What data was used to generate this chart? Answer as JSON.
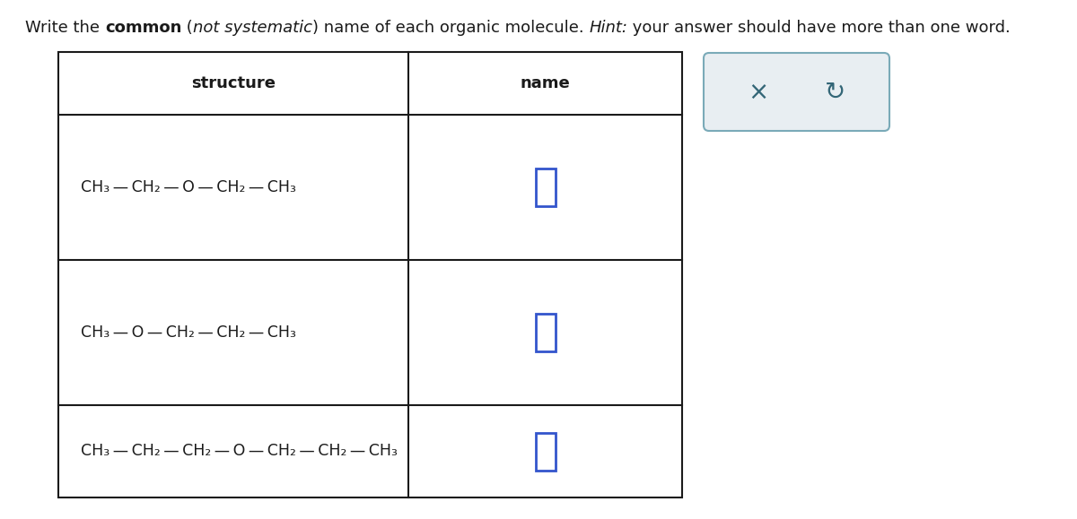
{
  "bg_color": "#ffffff",
  "table_line_color": "#1a1a1a",
  "text_color": "#1a1a1a",
  "input_box_color": "#3355cc",
  "button_bg": "#e8eef2",
  "button_border": "#7aaab8",
  "button_text_color": "#336677",
  "col1_header": "structure",
  "col2_header": "name",
  "structures": [
    "CH₃ — CH₂ — O — CH₂ — CH₃",
    "CH₃ — O — CH₂ — CH₂ — CH₃",
    "CH₃ — CH₂ — CH₂ — O — CH₂ — CH₂ — CH₃"
  ],
  "title_fontsize": 13,
  "struct_fontsize": 12.5,
  "header_fontsize": 13
}
